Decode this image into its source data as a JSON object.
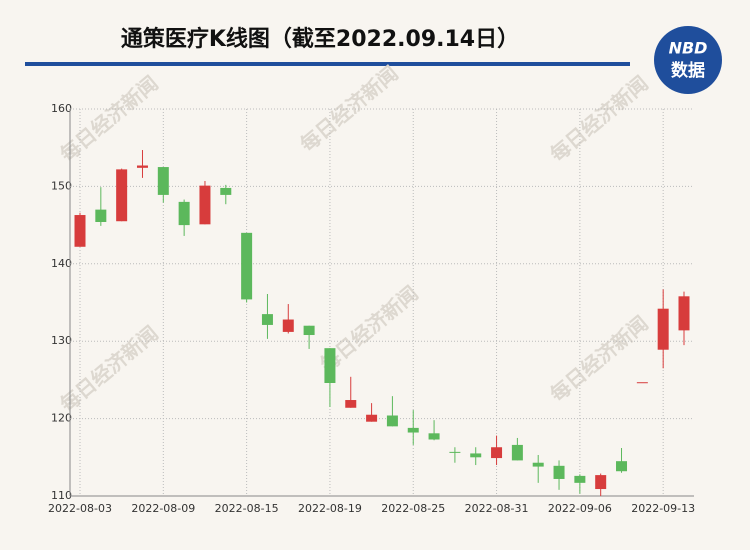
{
  "chart_data": {
    "type": "candlestick",
    "title": "通策医疗K线图（截至2022.09.14日）",
    "logo": {
      "top": "NBD",
      "bottom": "数据"
    },
    "watermark": "每日经济新闻",
    "categories": [
      "2022-08-03",
      null,
      null,
      null,
      "2022-08-09",
      null,
      null,
      null,
      "2022-08-15",
      null,
      null,
      null,
      "2022-08-19",
      null,
      null,
      null,
      "2022-08-25",
      null,
      null,
      null,
      "2022-08-31",
      null,
      null,
      null,
      "2022-09-06",
      null,
      null,
      null,
      "2022-09-13",
      null
    ],
    "open": [
      142.2,
      147.0,
      145.5,
      152.4,
      152.5,
      148.0,
      145.1,
      149.8,
      144.0,
      133.5,
      131.2,
      132.0,
      129.1,
      121.4,
      119.6,
      120.4,
      118.8,
      118.1,
      115.7,
      115.5,
      114.9,
      116.6,
      114.3,
      113.9,
      112.6,
      110.9,
      114.5,
      124.7,
      128.9,
      131.4
    ],
    "high": [
      146.6,
      149.9,
      152.3,
      154.7,
      152.5,
      148.3,
      150.7,
      150.2,
      144.0,
      136.1,
      134.8,
      132.0,
      129.1,
      125.4,
      122.0,
      122.9,
      121.1,
      119.8,
      116.3,
      116.3,
      117.8,
      117.5,
      115.3,
      114.6,
      112.8,
      112.9,
      116.2,
      124.7,
      136.7,
      136.4
    ],
    "low": [
      142.2,
      144.9,
      145.5,
      151.1,
      147.9,
      143.6,
      145.1,
      147.7,
      135.0,
      130.3,
      131.0,
      129.0,
      121.5,
      121.4,
      119.6,
      119.0,
      116.6,
      117.2,
      114.3,
      114.0,
      114.0,
      114.6,
      111.7,
      110.8,
      110.3,
      110.0,
      113.0,
      124.7,
      126.5,
      129.5
    ],
    "close": [
      146.3,
      145.4,
      152.2,
      152.7,
      148.9,
      145.0,
      150.1,
      148.9,
      135.4,
      132.1,
      132.8,
      130.8,
      124.6,
      122.4,
      120.5,
      119.0,
      118.2,
      117.3,
      115.6,
      115.0,
      116.3,
      114.6,
      113.8,
      112.2,
      111.7,
      112.7,
      113.2,
      124.7,
      134.2,
      135.8
    ],
    "up_color": "#d73c3c",
    "down_color": "#5cb85c",
    "ylim": [
      110,
      160
    ],
    "yticks": [
      110,
      120,
      130,
      140,
      150,
      160
    ],
    "grid": true
  }
}
